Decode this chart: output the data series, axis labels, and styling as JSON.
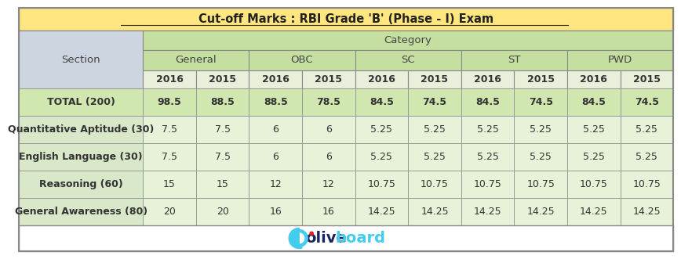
{
  "title": "Cut-off Marks : RBI Grade 'B' (Phase - I) Exam",
  "title_bg": "#FFE680",
  "header_category_bg": "#C5DFA0",
  "header_category_text": "Category",
  "header_section_bg": "#CDD5E0",
  "header_section_text": "Section",
  "year_header_bg": "#E8F0DC",
  "col_headers_level2": [
    "General",
    "OBC",
    "SC",
    "ST",
    "PWD"
  ],
  "col_headers_level3": [
    "2016",
    "2015",
    "2016",
    "2015",
    "2016",
    "2015",
    "2016",
    "2015",
    "2016",
    "2015"
  ],
  "rows": [
    [
      "General Awareness (80)",
      "20",
      "20",
      "16",
      "16",
      "14.25",
      "14.25",
      "14.25",
      "14.25",
      "14.25",
      "14.25"
    ],
    [
      "Reasoning (60)",
      "15",
      "15",
      "12",
      "12",
      "10.75",
      "10.75",
      "10.75",
      "10.75",
      "10.75",
      "10.75"
    ],
    [
      "English Language (30)",
      "7.5",
      "7.5",
      "6",
      "6",
      "5.25",
      "5.25",
      "5.25",
      "5.25",
      "5.25",
      "5.25"
    ],
    [
      "Quantitative Aptitude (30)",
      "7.5",
      "7.5",
      "6",
      "6",
      "5.25",
      "5.25",
      "5.25",
      "5.25",
      "5.25",
      "5.25"
    ],
    [
      "TOTAL (200)",
      "98.5",
      "88.5",
      "88.5",
      "78.5",
      "84.5",
      "74.5",
      "84.5",
      "74.5",
      "84.5",
      "74.5"
    ]
  ],
  "row_bg_data": "#E8F2D8",
  "row_bg_total": "#D0E8B0",
  "section_col_bg": "#D8E8C8",
  "cell_text_color": "#333333",
  "border_color": "#AAAAAA",
  "footer_bg": "#FFFFFF",
  "title_font_size": 10.5,
  "header_font_size": 9.5,
  "cell_font_size": 9.0
}
